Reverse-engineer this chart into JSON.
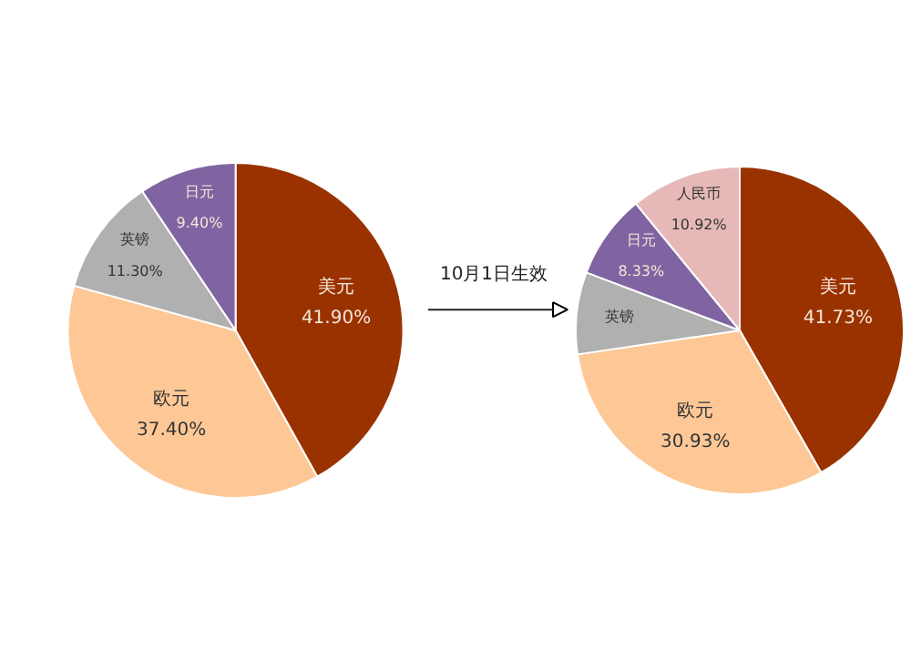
{
  "chart_data": [
    {
      "type": "pie",
      "categories": [
        "美元",
        "欧元",
        "英镑",
        "日元"
      ],
      "values": [
        41.9,
        37.4,
        11.3,
        9.4
      ],
      "colors": [
        "#9a3200",
        "#fdc896",
        "#b0b0b0",
        "#8064a2"
      ],
      "value_labels": [
        "41.90%",
        "37.40%",
        "11.30%",
        "9.40%"
      ]
    },
    {
      "type": "pie",
      "categories": [
        "美元",
        "欧元",
        "英镑",
        "日元",
        "人民币"
      ],
      "values": [
        41.73,
        30.93,
        8.09,
        8.33,
        10.92
      ],
      "colors": [
        "#9a3200",
        "#fdc896",
        "#b0b0b0",
        "#8064a2",
        "#e6b9b8"
      ],
      "value_labels": [
        "41.73%",
        "30.93%",
        null,
        "8.33%",
        "10.92%"
      ],
      "annotations": [
        "10月1日生效"
      ]
    }
  ]
}
